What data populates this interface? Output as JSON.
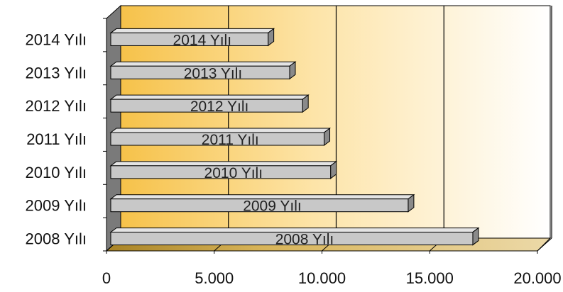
{
  "chart_data": {
    "type": "bar",
    "orientation": "horizontal",
    "style": "3d",
    "categories": [
      "2008 Yılı",
      "2009 Yılı",
      "2010 Yılı",
      "2011 Yılı",
      "2012 Yılı",
      "2013 Yılı",
      "2014 Yılı"
    ],
    "series": [
      {
        "values": [
          17000,
          14000,
          10400,
          10100,
          9100,
          8500,
          7500
        ],
        "data_labels": [
          "2008 Yılı",
          "2009 Yılı",
          "2010 Yılı",
          "2011 Yılı",
          "2012 Yılı",
          "2013 Yılı",
          "2014 Yılı"
        ]
      }
    ],
    "xlim": [
      0,
      20000
    ],
    "xticks": [
      0,
      5000,
      10000,
      15000,
      20000
    ],
    "xtick_labels": [
      "0",
      "5.000",
      "10.000",
      "15.000",
      "20.000"
    ],
    "title": "",
    "xlabel": "",
    "ylabel": "",
    "grid": true,
    "legend": "none",
    "colors": {
      "bar_front": "#c8c8c8",
      "bar_top": "#e4e4e4",
      "bar_side": "#8a8a8a",
      "wall_gradient_start": "#f6c24a",
      "wall_gradient_end": "#ffffff",
      "floor": "#b8952e",
      "side_wall": "#7a7a7a"
    }
  }
}
